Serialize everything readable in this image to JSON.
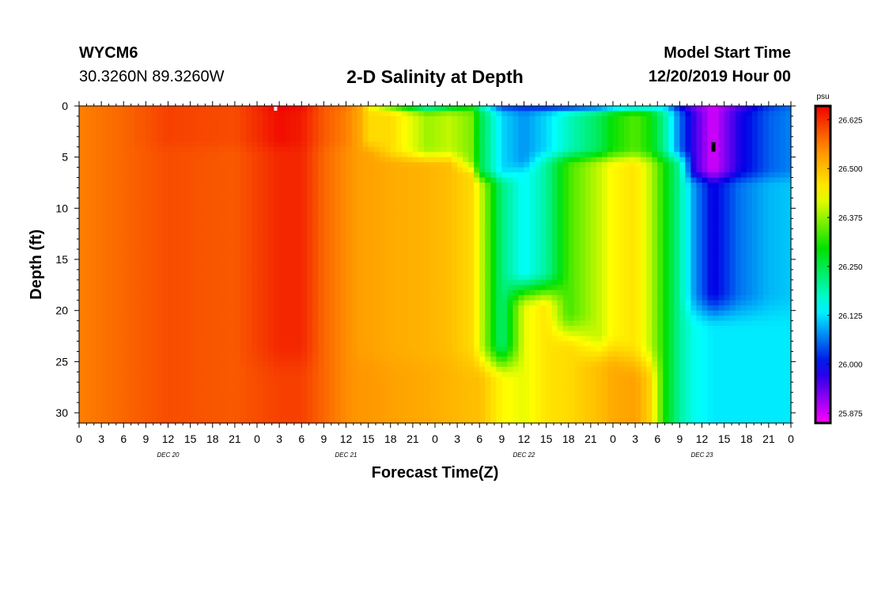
{
  "header": {
    "station_id": "WYCM6",
    "coords": "30.3260N 89.3260W",
    "title": "2-D Salinity at Depth",
    "start_label": "Model Start Time",
    "start_value": "12/20/2019 Hour 00"
  },
  "chart_data": {
    "type": "heatmap",
    "title": "2-D Salinity at Depth",
    "xlabel": "Forecast Time(Z)",
    "ylabel": "Depth (ft)",
    "x_unit": "hours from 12/20/2019 00Z",
    "xlim": [
      0,
      96
    ],
    "ylim": [
      0,
      31
    ],
    "y_inverted": true,
    "x_tick_labels": [
      "0",
      "3",
      "6",
      "9",
      "12",
      "15",
      "18",
      "21",
      "0",
      "3",
      "6",
      "9",
      "12",
      "15",
      "18",
      "21",
      "0",
      "3",
      "6",
      "9",
      "12",
      "15",
      "18",
      "21",
      "0",
      "3",
      "6",
      "9",
      "12",
      "15",
      "18",
      "21",
      "0"
    ],
    "day_labels": [
      {
        "label": "DEC 20",
        "x_hour": 12
      },
      {
        "label": "DEC 21",
        "x_hour": 36
      },
      {
        "label": "DEC 22",
        "x_hour": 60
      },
      {
        "label": "DEC 23",
        "x_hour": 84
      }
    ],
    "y_ticks": [
      0,
      5,
      10,
      15,
      20,
      25,
      30
    ],
    "colorbar": {
      "unit": "psu",
      "min": 25.85,
      "max": 26.66,
      "tick_values": [
        26.625,
        26.5,
        26.375,
        26.25,
        26.125,
        26.0,
        25.875
      ],
      "tick_labels": [
        "26.625",
        "26.500",
        "26.375",
        "26.250",
        "26.125",
        "26.000",
        "25.875"
      ]
    },
    "description_markers": [
      {
        "x_hour": 26.5,
        "depth": 0.2,
        "color": "#ffffff"
      },
      {
        "x_hour": 85.5,
        "depth": 4,
        "color": "#000000"
      }
    ],
    "columns": [
      {
        "hour": 0,
        "surf": 26.56,
        "upper": 26.56,
        "upper_end": 3,
        "mid": 26.56,
        "mid_end": 25,
        "bottom": 26.56
      },
      {
        "hour": 6,
        "surf": 26.58,
        "upper": 26.58,
        "upper_end": 3,
        "mid": 26.58,
        "mid_end": 25,
        "bottom": 26.58
      },
      {
        "hour": 12,
        "surf": 26.61,
        "upper": 26.61,
        "upper_end": 3,
        "mid": 26.6,
        "mid_end": 25,
        "bottom": 26.6
      },
      {
        "hour": 21,
        "surf": 26.6,
        "upper": 26.6,
        "upper_end": 3,
        "mid": 26.59,
        "mid_end": 25,
        "bottom": 26.59
      },
      {
        "hour": 27,
        "surf": 26.66,
        "upper": 26.65,
        "upper_end": 3,
        "mid": 26.63,
        "mid_end": 25,
        "bottom": 26.61
      },
      {
        "hour": 30,
        "surf": 26.65,
        "upper": 26.64,
        "upper_end": 3,
        "mid": 26.63,
        "mid_end": 25,
        "bottom": 26.61
      },
      {
        "hour": 33,
        "surf": 26.59,
        "upper": 26.59,
        "upper_end": 3,
        "mid": 26.58,
        "mid_end": 25,
        "bottom": 26.58
      },
      {
        "hour": 36,
        "surf": 26.57,
        "upper": 26.56,
        "upper_end": 3,
        "mid": 26.55,
        "mid_end": 25,
        "bottom": 26.55
      },
      {
        "hour": 38,
        "surf": 26.52,
        "upper": 26.52,
        "upper_end": 3,
        "mid": 26.53,
        "mid_end": 25,
        "bottom": 26.54
      },
      {
        "hour": 39,
        "surf": 26.45,
        "upper": 26.47,
        "upper_end": 3,
        "mid": 26.53,
        "mid_end": 25,
        "bottom": 26.54
      },
      {
        "hour": 42,
        "surf": 26.36,
        "upper": 26.47,
        "upper_end": 4,
        "mid": 26.52,
        "mid_end": 25,
        "bottom": 26.53
      },
      {
        "hour": 47,
        "surf": 26.18,
        "upper": 26.38,
        "upper_end": 4,
        "mid": 26.51,
        "mid_end": 25,
        "bottom": 26.52
      },
      {
        "hour": 50,
        "surf": 26.25,
        "upper": 26.4,
        "upper_end": 4,
        "mid": 26.5,
        "mid_end": 25,
        "bottom": 26.51
      },
      {
        "hour": 53,
        "surf": 26.3,
        "upper": 26.36,
        "upper_end": 5,
        "mid": 26.47,
        "mid_end": 25,
        "bottom": 26.5
      },
      {
        "hour": 54,
        "surf": 26.2,
        "upper": 26.26,
        "upper_end": 6,
        "mid": 26.42,
        "mid_end": 25,
        "bottom": 26.5
      },
      {
        "hour": 57,
        "surf": 26.04,
        "upper": 26.12,
        "upper_end": 6,
        "mid": 26.22,
        "mid_end": 25,
        "bottom": 26.44
      },
      {
        "hour": 60,
        "surf": 26.02,
        "upper": 26.08,
        "upper_end": 5,
        "mid": 26.14,
        "mid_end": 18,
        "bottom": 26.42
      },
      {
        "hour": 63,
        "surf": 26.02,
        "upper": 26.12,
        "upper_end": 4,
        "mid": 26.2,
        "mid_end": 18,
        "bottom": 26.46
      },
      {
        "hour": 66,
        "surf": 26.03,
        "upper": 26.18,
        "upper_end": 4,
        "mid": 26.33,
        "mid_end": 22,
        "bottom": 26.47
      },
      {
        "hour": 70,
        "surf": 26.06,
        "upper": 26.24,
        "upper_end": 4,
        "mid": 26.4,
        "mid_end": 24,
        "bottom": 26.5
      },
      {
        "hour": 72,
        "surf": 26.1,
        "upper": 26.3,
        "upper_end": 4,
        "mid": 26.44,
        "mid_end": 24,
        "bottom": 26.52
      },
      {
        "hour": 75,
        "surf": 26.14,
        "upper": 26.34,
        "upper_end": 4,
        "mid": 26.46,
        "mid_end": 25,
        "bottom": 26.53
      },
      {
        "hour": 77,
        "surf": 26.14,
        "upper": 26.3,
        "upper_end": 4,
        "mid": 26.4,
        "mid_end": 25,
        "bottom": 26.48
      },
      {
        "hour": 79,
        "surf": 26.12,
        "upper": 26.2,
        "upper_end": 4,
        "mid": 26.3,
        "mid_end": 25,
        "bottom": 26.3
      },
      {
        "hour": 81,
        "surf": 26.0,
        "upper": 26.06,
        "upper_end": 4,
        "mid": 26.2,
        "mid_end": 25,
        "bottom": 26.2
      },
      {
        "hour": 83,
        "surf": 25.93,
        "upper": 25.96,
        "upper_end": 6,
        "mid": 26.08,
        "mid_end": 20,
        "bottom": 26.15
      },
      {
        "hour": 85.5,
        "surf": 25.87,
        "upper": 25.87,
        "upper_end": 6,
        "mid": 25.99,
        "mid_end": 20,
        "bottom": 26.13
      },
      {
        "hour": 89,
        "surf": 25.95,
        "upper": 25.98,
        "upper_end": 6,
        "mid": 26.06,
        "mid_end": 20,
        "bottom": 26.13
      },
      {
        "hour": 93,
        "surf": 26.03,
        "upper": 26.05,
        "upper_end": 6,
        "mid": 26.1,
        "mid_end": 20,
        "bottom": 26.13
      },
      {
        "hour": 96,
        "surf": 26.06,
        "upper": 26.07,
        "upper_end": 6,
        "mid": 26.11,
        "mid_end": 20,
        "bottom": 26.13
      }
    ]
  }
}
